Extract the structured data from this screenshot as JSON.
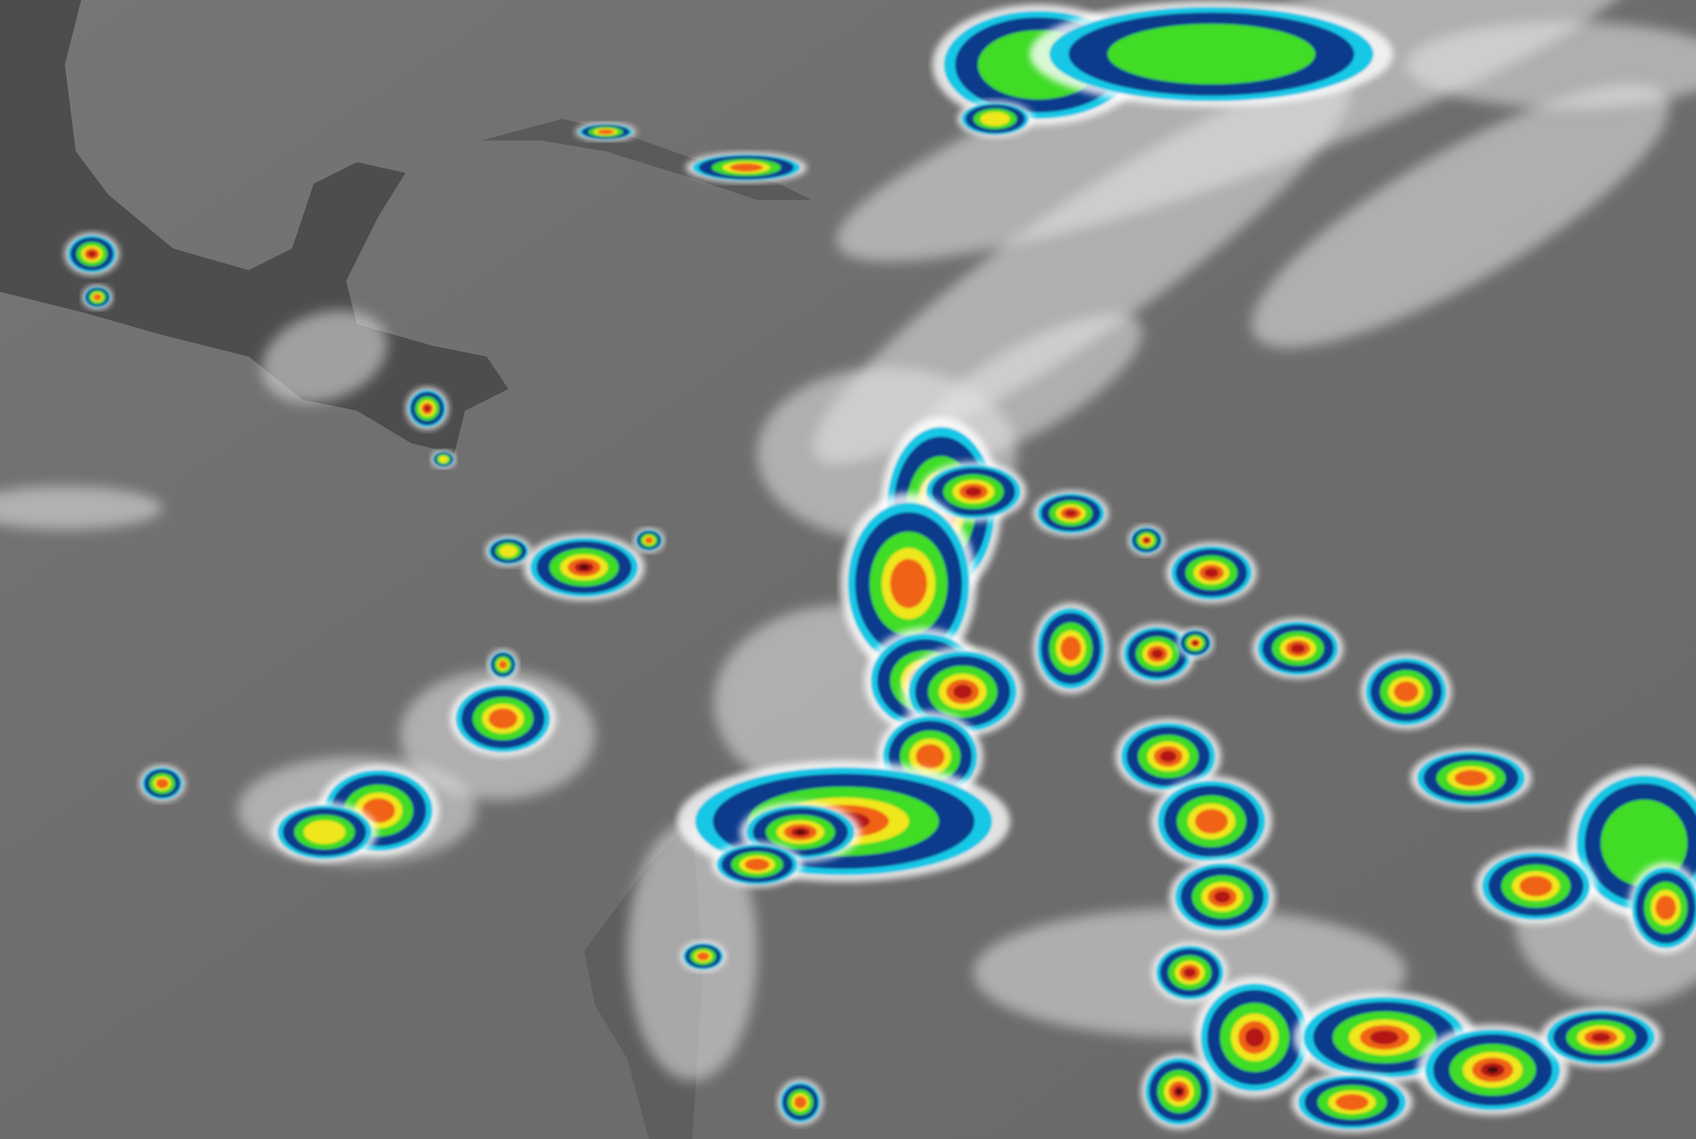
{
  "imagery": {
    "kind": "enhanced infrared satellite image",
    "colors": {
      "ocean": "#707070",
      "land": "#4a4a4a",
      "cloud_cold": "#f2f2f2",
      "enhance_blue": "#0a3a8c",
      "enhance_cyan": "#19c8e6",
      "enhance_green": "#3fdc28",
      "enhance_yellow": "#f0e61e",
      "enhance_orange": "#f06414",
      "enhance_red": "#b41414",
      "enhance_darkred": "#3c0a0a"
    }
  }
}
